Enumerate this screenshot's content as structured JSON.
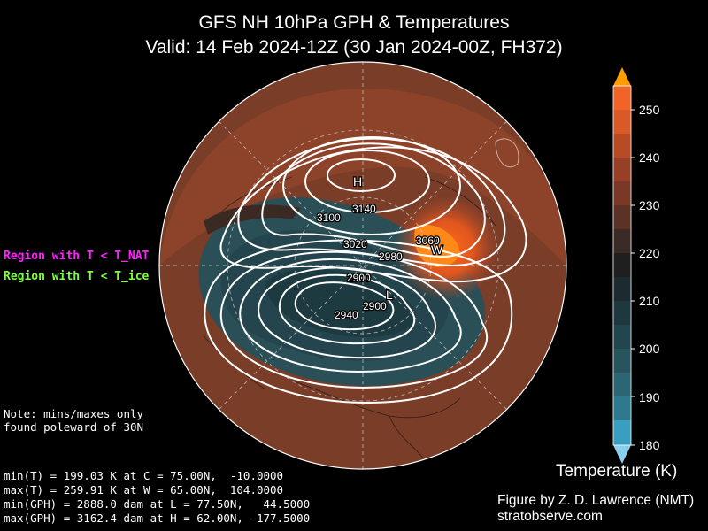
{
  "title_line1": "GFS NH 10hPa GPH & Temperatures",
  "title_line2": "Valid: 14 Feb 2024-12Z  (30 Jan 2024-00Z, FH372)",
  "legend": {
    "nat": "Region with T < T_NAT",
    "ice": "Region with T < T_ice",
    "nat_color": "#ff22ff",
    "ice_color": "#7dff3c"
  },
  "note": "Note: mins/maxes only\nfound poleward of 30N",
  "stats": [
    "min(T) = 199.03 K at C = 75.00N,  -10.0000",
    "max(T) = 259.91 K at W = 65.00N,  104.0000",
    "min(GPH) = 2888.0 dam at L = 77.50N,   44.5000",
    "max(GPH) = 3162.4 dam at H = 62.00N, -177.5000"
  ],
  "colorbar": {
    "label": "Temperature (K)",
    "ticks": [
      "250",
      "240",
      "230",
      "220",
      "210",
      "200",
      "190",
      "180"
    ]
  },
  "contour_labels": {
    "c3140": "3140",
    "c3100": "3100",
    "c3060": "3060",
    "c3020": "3020",
    "c2980": "2980",
    "c2900a": "2900",
    "c2900b": "2900",
    "c2940": "2940"
  },
  "markers": {
    "high": "H",
    "low": "L",
    "warm": "W"
  },
  "credit": {
    "line1": "Figure by Z. D. Lawrence (NMT)",
    "line2": "stratobserve.com"
  }
}
